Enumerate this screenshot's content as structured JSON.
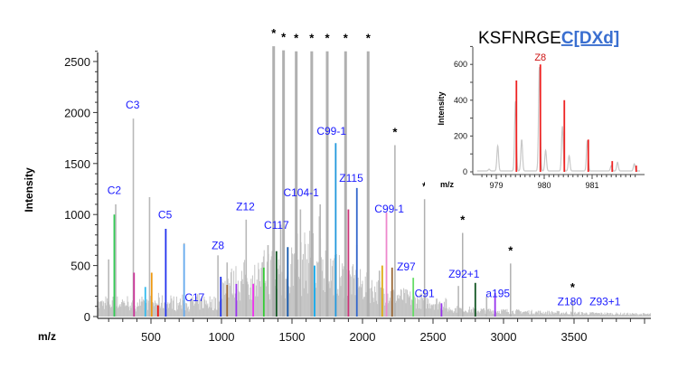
{
  "chart_data": [
    {
      "type": "bar",
      "title": "",
      "xlabel": "m/z",
      "ylabel": "Intensity",
      "xlim": [
        120,
        4000
      ],
      "ylim": [
        0,
        2600
      ],
      "xticks": [
        500,
        1000,
        1500,
        2000,
        2500,
        3000,
        3500
      ],
      "yticks": [
        0,
        500,
        1000,
        1500,
        2000,
        2500
      ],
      "starred_peaks": [
        {
          "mz": 1370,
          "intensity": 2650
        },
        {
          "mz": 1440,
          "intensity": 2610
        },
        {
          "mz": 1530,
          "intensity": 2600
        },
        {
          "mz": 1640,
          "intensity": 2600
        },
        {
          "mz": 1750,
          "intensity": 2600
        },
        {
          "mz": 1880,
          "intensity": 2600
        },
        {
          "mz": 2040,
          "intensity": 2600
        },
        {
          "mz": 2230,
          "intensity": 1680
        },
        {
          "mz": 2440,
          "intensity": 1150
        },
        {
          "mz": 2710,
          "intensity": 820
        },
        {
          "mz": 3050,
          "intensity": 520
        },
        {
          "mz": 3490,
          "intensity": 160
        }
      ],
      "grey_peaks": [
        {
          "mz": 200,
          "intensity": 560
        },
        {
          "mz": 250,
          "intensity": 1100
        },
        {
          "mz": 375,
          "intensity": 1940
        },
        {
          "mz": 490,
          "intensity": 1170
        },
        {
          "mz": 735,
          "intensity": 720
        },
        {
          "mz": 975,
          "intensity": 600
        },
        {
          "mz": 1040,
          "intensity": 530
        },
        {
          "mz": 1175,
          "intensity": 950
        },
        {
          "mz": 1330,
          "intensity": 700
        },
        {
          "mz": 1420,
          "intensity": 900
        },
        {
          "mz": 1560,
          "intensity": 1050
        },
        {
          "mz": 1700,
          "intensity": 1100
        },
        {
          "mz": 1960,
          "intensity": 700
        },
        {
          "mz": 2120,
          "intensity": 450
        },
        {
          "mz": 2680,
          "intensity": 300
        },
        {
          "mz": 2880,
          "intensity": 200
        }
      ],
      "colored_peaks": [
        {
          "mz": 240,
          "intensity": 1000,
          "color": "#33cc55"
        },
        {
          "mz": 380,
          "intensity": 430,
          "color": "#cc3399"
        },
        {
          "mz": 460,
          "intensity": 290,
          "color": "#33bbee"
        },
        {
          "mz": 505,
          "intensity": 430,
          "color": "#ee9911"
        },
        {
          "mz": 550,
          "intensity": 110,
          "color": "#ee1111"
        },
        {
          "mz": 605,
          "intensity": 860,
          "color": "#2233ee"
        },
        {
          "mz": 735,
          "intensity": 710,
          "color": "#66aaee"
        },
        {
          "mz": 995,
          "intensity": 390,
          "color": "#2233ee"
        },
        {
          "mz": 1040,
          "intensity": 310,
          "color": "#996633"
        },
        {
          "mz": 1105,
          "intensity": 320,
          "color": "#9933ee"
        },
        {
          "mz": 1225,
          "intensity": 320,
          "color": "#ee33ee"
        },
        {
          "mz": 1300,
          "intensity": 480,
          "color": "#33cc33"
        },
        {
          "mz": 1390,
          "intensity": 640,
          "color": "#115522"
        },
        {
          "mz": 1470,
          "intensity": 680,
          "color": "#1155aa"
        },
        {
          "mz": 1660,
          "intensity": 500,
          "color": "#11aaee"
        },
        {
          "mz": 1810,
          "intensity": 1700,
          "color": "#2299dd"
        },
        {
          "mz": 1900,
          "intensity": 1050,
          "color": "#cc3377"
        },
        {
          "mz": 1960,
          "intensity": 1260,
          "color": "#3366cc"
        },
        {
          "mz": 2140,
          "intensity": 500,
          "color": "#ddaa11"
        },
        {
          "mz": 2170,
          "intensity": 1020,
          "color": "#ee88cc"
        },
        {
          "mz": 2210,
          "intensity": 480,
          "color": "#996633"
        },
        {
          "mz": 2360,
          "intensity": 380,
          "color": "#66dd66"
        },
        {
          "mz": 2560,
          "intensity": 130,
          "color": "#9933ee"
        },
        {
          "mz": 2800,
          "intensity": 330,
          "color": "#115522"
        },
        {
          "mz": 2940,
          "intensity": 230,
          "color": "#9933ee"
        }
      ],
      "annotations": [
        {
          "text": "C2",
          "mz": 240,
          "intensity": 1200
        },
        {
          "text": "C3",
          "mz": 370,
          "intensity": 2040
        },
        {
          "text": "C5",
          "mz": 600,
          "intensity": 960
        },
        {
          "text": "C17",
          "mz": 810,
          "intensity": 150
        },
        {
          "text": "Z8",
          "mz": 975,
          "intensity": 660
        },
        {
          "text": "Z12",
          "mz": 1170,
          "intensity": 1040
        },
        {
          "text": "C117",
          "mz": 1390,
          "intensity": 860
        },
        {
          "text": "C104-1",
          "mz": 1565,
          "intensity": 1180
        },
        {
          "text": "C99-1",
          "mz": 1780,
          "intensity": 1780
        },
        {
          "text": "Z115",
          "mz": 1920,
          "intensity": 1320
        },
        {
          "text": "C99-1",
          "mz": 2190,
          "intensity": 1020
        },
        {
          "text": "Z97",
          "mz": 2310,
          "intensity": 450
        },
        {
          "text": "C91",
          "mz": 2440,
          "intensity": 190
        },
        {
          "text": "Z92+1",
          "mz": 2720,
          "intensity": 380
        },
        {
          "text": "a195",
          "mz": 2960,
          "intensity": 190
        },
        {
          "text": "Z180",
          "mz": 3470,
          "intensity": 110
        },
        {
          "text": "Z93+1",
          "mz": 3720,
          "intensity": 110
        }
      ],
      "star_symbol": "*"
    },
    {
      "type": "line",
      "title_black": "KSFNRGE",
      "title_blue": "C[DXd]",
      "xlabel": "m/z",
      "ylabel": "Intensity",
      "xlim": [
        978.6,
        982.0
      ],
      "ylim": [
        0,
        720
      ],
      "xticks": [
        979,
        980,
        981
      ],
      "yticks": [
        0,
        200,
        400,
        600
      ],
      "annotation": {
        "text": "Z8",
        "mz": 979.92,
        "intensity": 620
      },
      "theoretical_peaks": [
        {
          "mz": 979.42,
          "intensity": 510
        },
        {
          "mz": 979.92,
          "intensity": 600
        },
        {
          "mz": 980.42,
          "intensity": 400
        },
        {
          "mz": 980.92,
          "intensity": 180
        },
        {
          "mz": 981.42,
          "intensity": 60
        },
        {
          "mz": 981.92,
          "intensity": 35
        }
      ],
      "observed_profile_peaks": [
        {
          "mz": 978.85,
          "intensity": 10
        },
        {
          "mz": 979.03,
          "intensity": 140
        },
        {
          "mz": 979.4,
          "intensity": 390
        },
        {
          "mz": 979.53,
          "intensity": 175
        },
        {
          "mz": 979.9,
          "intensity": 580
        },
        {
          "mz": 980.03,
          "intensity": 115
        },
        {
          "mz": 980.38,
          "intensity": 250
        },
        {
          "mz": 980.52,
          "intensity": 85
        },
        {
          "mz": 980.9,
          "intensity": 170
        },
        {
          "mz": 981.4,
          "intensity": 30
        },
        {
          "mz": 981.53,
          "intensity": 48
        },
        {
          "mz": 981.88,
          "intensity": 40
        }
      ],
      "colors": {
        "theoretical": "#ee2222",
        "observed": "#c8c8c8",
        "annotation": "#cc1111",
        "title_blue": "#3a6fd0"
      }
    }
  ]
}
